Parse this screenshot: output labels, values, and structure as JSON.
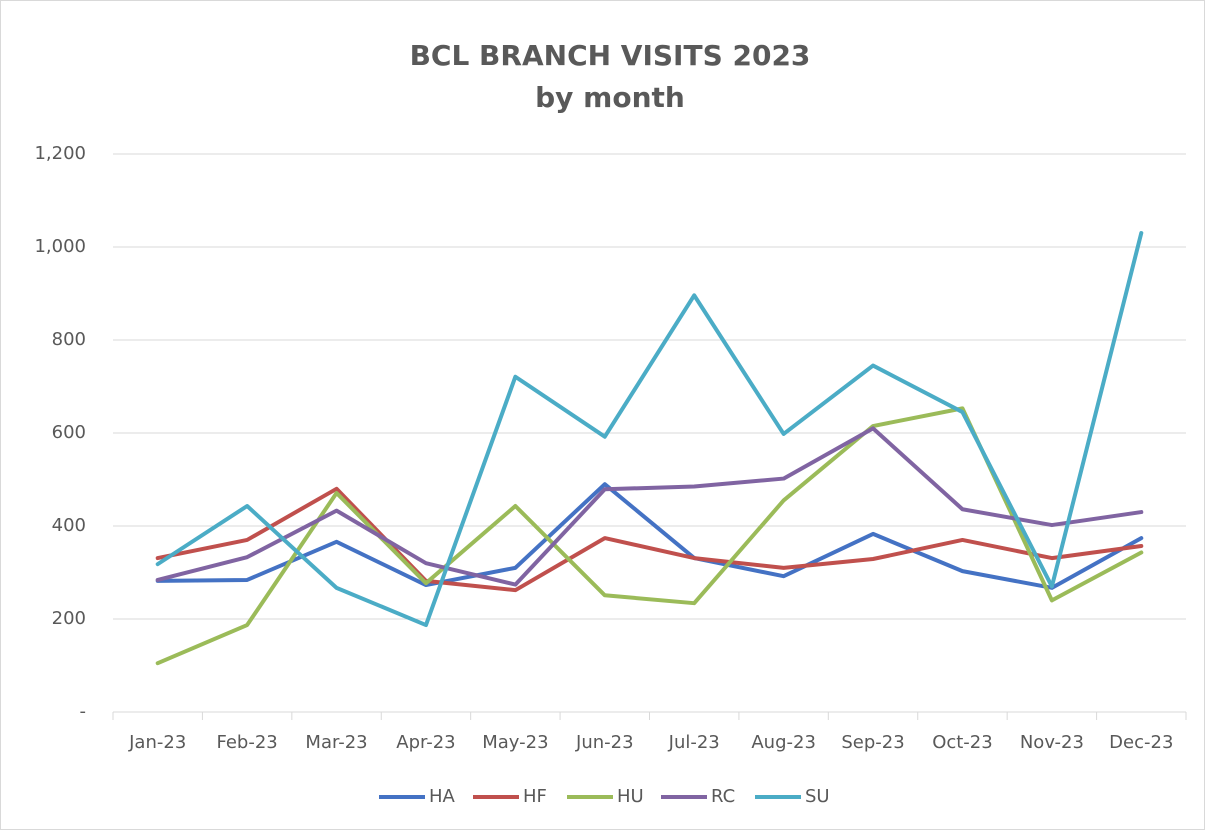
{
  "chart_data": {
    "type": "line",
    "title": "BCL BRANCH VISITS 2023",
    "subtitle": "by month",
    "categories": [
      "Jan-23",
      "Feb-23",
      "Mar-23",
      "Apr-23",
      "May-23",
      "Jun-23",
      "Jul-23",
      "Aug-23",
      "Sep-23",
      "Oct-23",
      "Nov-23",
      "Dec-23"
    ],
    "series": [
      {
        "name": "HA",
        "color": "#4472c4",
        "values": [
          282,
          284,
          366,
          273,
          310,
          490,
          331,
          292,
          383,
          303,
          267,
          374
        ]
      },
      {
        "name": "HF",
        "color": "#c0504d",
        "values": [
          331,
          370,
          480,
          282,
          262,
          374,
          331,
          310,
          329,
          370,
          331,
          357
        ]
      },
      {
        "name": "HU",
        "color": "#9bbb59",
        "values": [
          105,
          187,
          471,
          277,
          443,
          251,
          234,
          455,
          615,
          653,
          240,
          343
        ]
      },
      {
        "name": "RC",
        "color": "#8064a2",
        "values": [
          284,
          333,
          433,
          320,
          274,
          479,
          485,
          502,
          610,
          436,
          402,
          430
        ]
      },
      {
        "name": "SU",
        "color": "#4bacc6",
        "values": [
          318,
          443,
          267,
          187,
          721,
          592,
          896,
          598,
          745,
          645,
          270,
          1030
        ]
      }
    ],
    "ylim": [
      0,
      1200
    ],
    "yticks": [
      {
        "value": 0,
        "label": "-"
      },
      200,
      400,
      600,
      800,
      {
        "value": 1000,
        "label": "1,000"
      },
      {
        "value": 1200,
        "label": "1,200"
      }
    ],
    "grid": true,
    "legend": "bottom"
  }
}
